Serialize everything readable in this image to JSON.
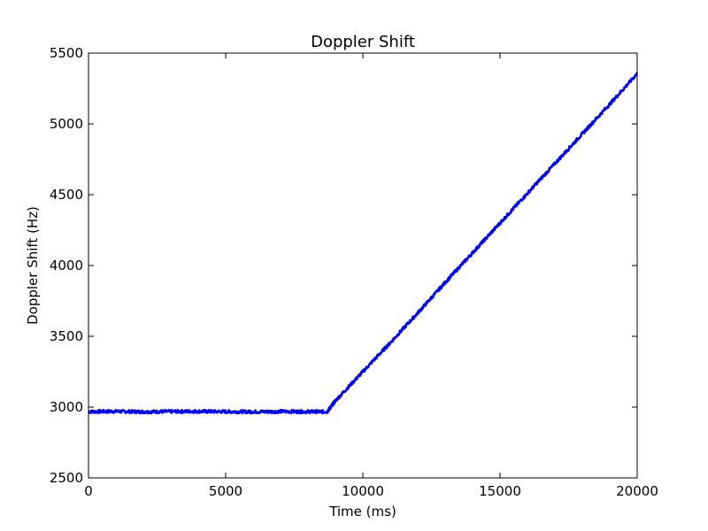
{
  "chart_data": {
    "type": "line",
    "title": "Doppler Shift",
    "xlabel": "Time (ms)",
    "ylabel": "Doppler Shift (Hz)",
    "xlim": [
      0,
      20000
    ],
    "ylim": [
      2500,
      5500
    ],
    "xticks": [
      0,
      5000,
      10000,
      15000,
      20000
    ],
    "yticks": [
      2500,
      3000,
      3500,
      4000,
      4500,
      5000,
      5500
    ],
    "xtick_labels": [
      "0",
      "5000",
      "10000",
      "15000",
      "20000"
    ],
    "ytick_labels": [
      "2500",
      "3000",
      "3500",
      "4000",
      "4500",
      "5000",
      "5500"
    ],
    "grid": false,
    "legend": "none",
    "series": [
      {
        "color": "#0000ff",
        "x": [
          0,
          1000,
          2000,
          3000,
          4000,
          5000,
          6000,
          7000,
          8000,
          8700,
          9000,
          10000,
          11000,
          12000,
          13000,
          14000,
          15000,
          16000,
          17000,
          18000,
          19000,
          20000
        ],
        "y": [
          2968,
          2970,
          2967,
          2969,
          2970,
          2968,
          2967,
          2969,
          2968,
          2967,
          3045,
          3250,
          3455,
          3665,
          3880,
          4090,
          4300,
          4510,
          4720,
          4930,
          5140,
          5355
        ]
      }
    ]
  }
}
